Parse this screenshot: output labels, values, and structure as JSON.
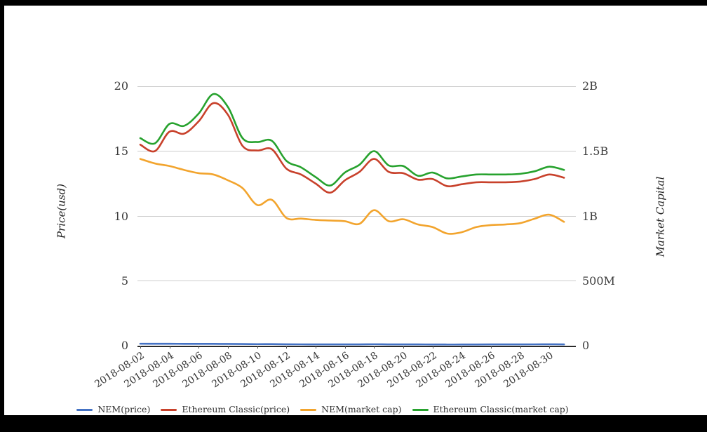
{
  "chart_data": {
    "type": "line",
    "title": "",
    "x": [
      "2018-08-02",
      "2018-08-03",
      "2018-08-04",
      "2018-08-05",
      "2018-08-06",
      "2018-08-07",
      "2018-08-08",
      "2018-08-09",
      "2018-08-10",
      "2018-08-11",
      "2018-08-12",
      "2018-08-13",
      "2018-08-14",
      "2018-08-15",
      "2018-08-16",
      "2018-08-17",
      "2018-08-18",
      "2018-08-19",
      "2018-08-20",
      "2018-08-21",
      "2018-08-22",
      "2018-08-23",
      "2018-08-24",
      "2018-08-25",
      "2018-08-26",
      "2018-08-27",
      "2018-08-28",
      "2018-08-29",
      "2018-08-30",
      "2018-08-31"
    ],
    "x_tick_labels": [
      "2018-08-02",
      "2018-08-04",
      "2018-08-06",
      "2018-08-08",
      "2018-08-10",
      "2018-08-12",
      "2018-08-14",
      "2018-08-16",
      "2018-08-18",
      "2018-08-20",
      "2018-08-22",
      "2018-08-24",
      "2018-08-26",
      "2018-08-28",
      "2018-08-30"
    ],
    "left_axis": {
      "label": "Price(usd)",
      "range": [
        0,
        20
      ],
      "tick_labels": [
        "20",
        "15",
        "10",
        "5",
        "0"
      ]
    },
    "right_axis": {
      "label": "Market Capital",
      "range_billions": [
        0,
        2
      ],
      "tick_labels": [
        "2B",
        "1.5B",
        "1B",
        "500M",
        "0"
      ]
    },
    "grid": "horizontal",
    "legend_position": "bottom",
    "series": [
      {
        "name": "NEM(price)",
        "axis": "left",
        "color": "#4472c4",
        "values": [
          0.155,
          0.151,
          0.15,
          0.147,
          0.145,
          0.143,
          0.138,
          0.132,
          0.122,
          0.125,
          0.112,
          0.108,
          0.106,
          0.105,
          0.105,
          0.103,
          0.115,
          0.106,
          0.107,
          0.103,
          0.1,
          0.095,
          0.096,
          0.1,
          0.102,
          0.103,
          0.104,
          0.108,
          0.111,
          0.105
        ]
      },
      {
        "name": "Ethereum Classic(price)",
        "axis": "left",
        "color": "#c8412b",
        "values": [
          15.5,
          15.0,
          16.5,
          16.35,
          17.3,
          18.7,
          17.8,
          15.4,
          15.05,
          15.15,
          13.65,
          13.2,
          12.5,
          11.8,
          12.75,
          13.4,
          14.4,
          13.4,
          13.3,
          12.8,
          12.85,
          12.3,
          12.45,
          12.6,
          12.6,
          12.6,
          12.65,
          12.85,
          13.2,
          12.95
        ]
      },
      {
        "name": "NEM(market cap)",
        "axis": "right",
        "color": "#f2a42d",
        "values_billions": [
          1.44,
          1.405,
          1.385,
          1.355,
          1.33,
          1.32,
          1.275,
          1.215,
          1.085,
          1.125,
          0.985,
          0.98,
          0.97,
          0.965,
          0.96,
          0.94,
          1.045,
          0.96,
          0.975,
          0.935,
          0.915,
          0.865,
          0.875,
          0.915,
          0.93,
          0.935,
          0.945,
          0.98,
          1.01,
          0.955
        ]
      },
      {
        "name": "Ethereum Classic(market cap)",
        "axis": "right",
        "color": "#27a22e",
        "values_billions": [
          1.6,
          1.56,
          1.71,
          1.695,
          1.79,
          1.94,
          1.84,
          1.6,
          1.57,
          1.58,
          1.425,
          1.375,
          1.3,
          1.235,
          1.335,
          1.395,
          1.5,
          1.39,
          1.385,
          1.31,
          1.335,
          1.29,
          1.305,
          1.32,
          1.32,
          1.32,
          1.325,
          1.345,
          1.38,
          1.355
        ]
      }
    ]
  }
}
